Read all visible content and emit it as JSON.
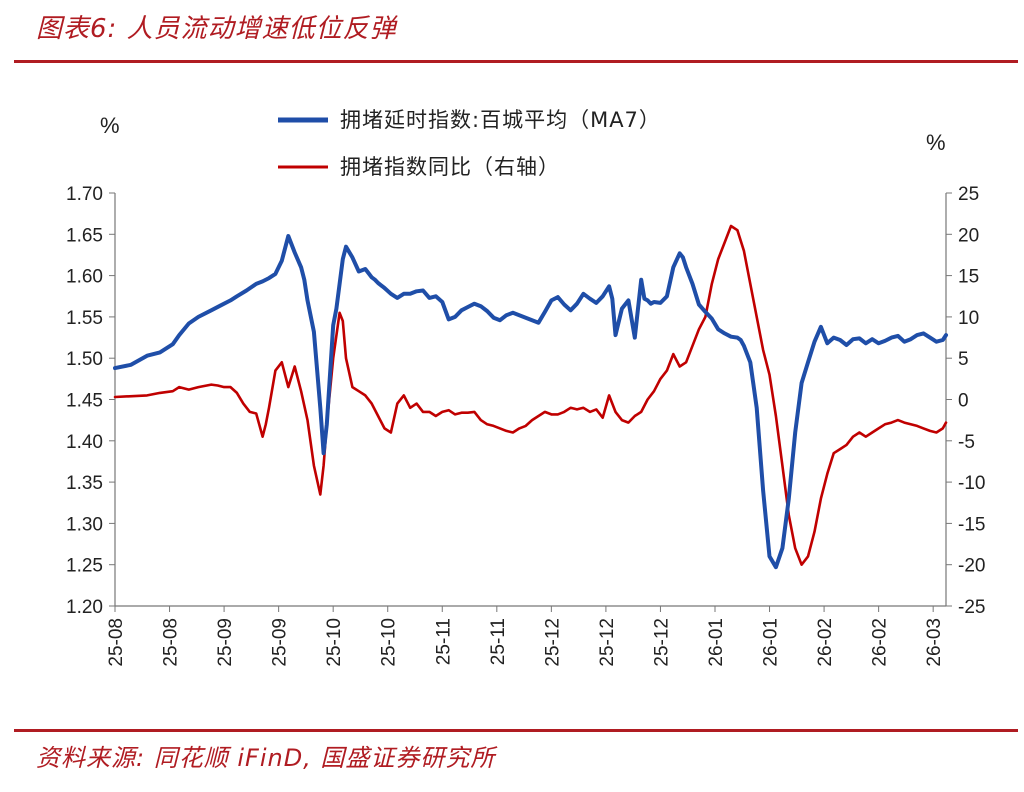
{
  "header": {
    "title": "图表6:  人员流动增速低位反弹"
  },
  "footer": {
    "source": "资料来源:  同花顺 iFinD,  国盛证券研究所"
  },
  "chart_data": {
    "type": "line",
    "left_unit": "%",
    "right_unit": "%",
    "left_axis": {
      "ylim": [
        1.2,
        1.7
      ],
      "ticks": [
        "1.70",
        "1.65",
        "1.60",
        "1.55",
        "1.50",
        "1.45",
        "1.40",
        "1.35",
        "1.30",
        "1.25",
        "1.20"
      ]
    },
    "right_axis": {
      "ylim": [
        -25,
        25
      ],
      "ticks": [
        "25",
        "20",
        "15",
        "10",
        "5",
        "0",
        "-5",
        "-10",
        "-15",
        "-20",
        "-25"
      ]
    },
    "x_tick_labels": [
      "25-08",
      "25-08",
      "25-09",
      "25-09",
      "25-10",
      "25-10",
      "25-11",
      "25-11",
      "25-12",
      "25-12",
      "25-12",
      "26-01",
      "26-01",
      "26-02",
      "26-02",
      "26-03"
    ],
    "x_ticks": [
      0,
      17,
      34,
      51,
      68,
      85,
      102,
      119,
      136,
      153,
      170,
      187,
      204,
      221,
      238,
      255
    ],
    "x_count": 260,
    "grid": false,
    "legend": "top-center",
    "series": [
      {
        "name": "拥堵延时指数:百城平均（MA7）",
        "axis": "left",
        "color": "#1f4ea8",
        "x": [
          0,
          5,
          10,
          14,
          18,
          20,
          23,
          26,
          30,
          33,
          36,
          38,
          41,
          44,
          46,
          48,
          50,
          52,
          54,
          56,
          58,
          59,
          60,
          62,
          64,
          65,
          66,
          67,
          68,
          69,
          70,
          71,
          72,
          74,
          76,
          78,
          79,
          80,
          81,
          82,
          84,
          86,
          88,
          90,
          92,
          94,
          96,
          98,
          100,
          102,
          104,
          106,
          108,
          110,
          112,
          114,
          116,
          118,
          120,
          122,
          124,
          126,
          128,
          130,
          132,
          134,
          136,
          138,
          140,
          142,
          144,
          146,
          148,
          150,
          152,
          154,
          155,
          156,
          158,
          160,
          162,
          163,
          164,
          165,
          166,
          167,
          168,
          170,
          172,
          174,
          176,
          177,
          178,
          180,
          182,
          184,
          186,
          188,
          190,
          192,
          194,
          195,
          196,
          198,
          200,
          202,
          204,
          206,
          208,
          210,
          212,
          214,
          216,
          218,
          220,
          222,
          224,
          226,
          228,
          230,
          232,
          234,
          236,
          238,
          240,
          242,
          244,
          246,
          248,
          250,
          252,
          254,
          256,
          258,
          259
        ],
        "values": [
          1.488,
          1.492,
          1.503,
          1.507,
          1.517,
          1.528,
          1.542,
          1.55,
          1.558,
          1.564,
          1.57,
          1.575,
          1.582,
          1.59,
          1.593,
          1.597,
          1.602,
          1.618,
          1.648,
          1.628,
          1.61,
          1.595,
          1.57,
          1.532,
          1.44,
          1.385,
          1.42,
          1.48,
          1.54,
          1.56,
          1.59,
          1.62,
          1.635,
          1.622,
          1.605,
          1.608,
          1.603,
          1.598,
          1.595,
          1.591,
          1.585,
          1.578,
          1.573,
          1.578,
          1.578,
          1.581,
          1.582,
          1.573,
          1.575,
          1.568,
          1.547,
          1.55,
          1.558,
          1.562,
          1.566,
          1.563,
          1.557,
          1.549,
          1.546,
          1.552,
          1.555,
          1.552,
          1.549,
          1.546,
          1.543,
          1.556,
          1.57,
          1.574,
          1.565,
          1.558,
          1.566,
          1.578,
          1.572,
          1.567,
          1.575,
          1.587,
          1.572,
          1.528,
          1.56,
          1.57,
          1.525,
          1.56,
          1.595,
          1.572,
          1.57,
          1.566,
          1.568,
          1.567,
          1.575,
          1.61,
          1.627,
          1.622,
          1.61,
          1.59,
          1.565,
          1.556,
          1.548,
          1.535,
          1.53,
          1.526,
          1.525,
          1.522,
          1.515,
          1.495,
          1.44,
          1.34,
          1.26,
          1.247,
          1.27,
          1.33,
          1.41,
          1.47,
          1.495,
          1.52,
          1.538,
          1.518,
          1.525,
          1.522,
          1.516,
          1.523,
          1.524,
          1.518,
          1.523,
          1.518,
          1.521,
          1.525,
          1.527,
          1.52,
          1.523,
          1.528,
          1.53,
          1.525,
          1.52,
          1.522,
          1.528
        ]
      },
      {
        "name": "拥堵指数同比（右轴）",
        "axis": "right",
        "color": "#c00000",
        "x": [
          0,
          10,
          14,
          18,
          20,
          23,
          26,
          30,
          32,
          34,
          36,
          38,
          40,
          42,
          44,
          46,
          47,
          48,
          50,
          52,
          54,
          56,
          58,
          60,
          62,
          64,
          65,
          66,
          68,
          70,
          71,
          72,
          74,
          76,
          78,
          80,
          82,
          84,
          86,
          88,
          90,
          92,
          94,
          96,
          98,
          100,
          102,
          104,
          106,
          108,
          110,
          112,
          114,
          116,
          118,
          120,
          122,
          124,
          126,
          128,
          130,
          132,
          134,
          136,
          138,
          140,
          142,
          144,
          146,
          148,
          150,
          152,
          154,
          156,
          158,
          160,
          162,
          164,
          166,
          168,
          170,
          172,
          174,
          176,
          178,
          180,
          182,
          184,
          186,
          188,
          190,
          192,
          194,
          196,
          198,
          200,
          202,
          204,
          206,
          208,
          210,
          212,
          214,
          216,
          218,
          220,
          222,
          224,
          226,
          228,
          230,
          232,
          234,
          236,
          238,
          240,
          242,
          244,
          246,
          248,
          250,
          252,
          254,
          256,
          258,
          259
        ],
        "values": [
          0.3,
          0.5,
          0.8,
          1.0,
          1.5,
          1.2,
          1.5,
          1.8,
          1.7,
          1.5,
          1.5,
          0.8,
          -0.5,
          -1.5,
          -1.7,
          -4.5,
          -3.0,
          -1.0,
          3.5,
          4.5,
          1.5,
          4.0,
          1.0,
          -2.5,
          -8.0,
          -11.5,
          -8.0,
          -3.0,
          5.0,
          10.5,
          9.5,
          5.0,
          1.5,
          1.0,
          0.5,
          -0.5,
          -2.0,
          -3.5,
          -4.0,
          -0.5,
          0.5,
          -1.0,
          -0.5,
          -1.5,
          -1.5,
          -2.0,
          -1.5,
          -1.3,
          -1.8,
          -1.6,
          -1.6,
          -1.5,
          -2.5,
          -3.0,
          -3.2,
          -3.5,
          -3.8,
          -4.0,
          -3.5,
          -3.2,
          -2.5,
          -2.0,
          -1.5,
          -1.8,
          -1.8,
          -1.5,
          -1.0,
          -1.2,
          -1.0,
          -1.5,
          -1.2,
          -2.2,
          0.5,
          -1.5,
          -2.5,
          -2.8,
          -2.0,
          -1.5,
          0.0,
          1.0,
          2.5,
          3.5,
          5.5,
          4.0,
          4.5,
          6.5,
          8.5,
          10.0,
          14.0,
          17.0,
          19.0,
          21.0,
          20.5,
          18.0,
          14.0,
          10.0,
          6.0,
          3.0,
          -2.0,
          -8.0,
          -14.0,
          -18.0,
          -20.0,
          -19.0,
          -16.0,
          -12.0,
          -9.0,
          -6.5,
          -6.0,
          -5.5,
          -4.5,
          -4.0,
          -4.5,
          -4.0,
          -3.5,
          -3.0,
          -2.8,
          -2.5,
          -2.8,
          -3.0,
          -3.2,
          -3.5,
          -3.8,
          -4.0,
          -3.5,
          -2.8
        ]
      }
    ]
  }
}
